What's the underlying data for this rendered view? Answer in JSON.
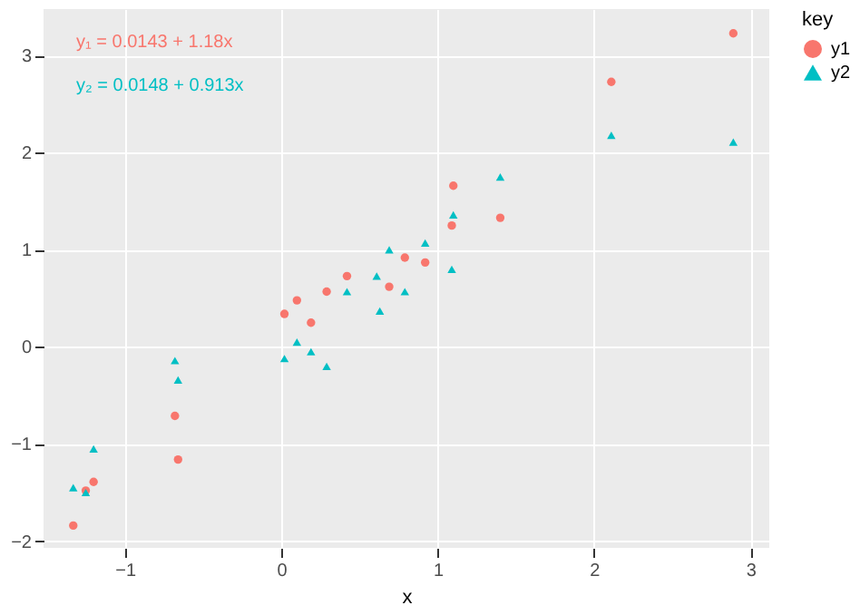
{
  "chart_data": {
    "type": "scatter",
    "xlabel": "x",
    "legend_title": "key",
    "legend": "right",
    "grid": true,
    "xlim": [
      -1.52,
      3.12
    ],
    "ylim": [
      -2.07,
      3.48
    ],
    "xticks": [
      -1,
      0,
      1,
      2,
      3
    ],
    "yticks": [
      -2,
      -1,
      0,
      1,
      2,
      3
    ],
    "annotations": [
      "y₁ = 0.0143 + 1.18x",
      "y₂ = 0.0148 + 0.913x"
    ],
    "series": [
      {
        "name": "y1",
        "color": "#f8766d",
        "marker": "circle",
        "x": [
          -1.33,
          -1.25,
          -1.2,
          -0.68,
          -0.66,
          0.02,
          0.1,
          0.19,
          0.29,
          0.42,
          0.61,
          0.69,
          0.79,
          0.92,
          1.09,
          1.1,
          1.4,
          2.11,
          2.89
        ],
        "values": [
          -1.84,
          -1.48,
          -1.39,
          -0.71,
          -1.16,
          0.34,
          0.48,
          0.25,
          0.57,
          0.73,
          null,
          0.62,
          0.92,
          0.87,
          1.25,
          1.66,
          1.33,
          2.73,
          3.23
        ]
      },
      {
        "name": "y2",
        "color": "#00bfc4",
        "marker": "triangle",
        "x": [
          -1.33,
          -1.25,
          -1.2,
          -0.68,
          -0.66,
          0.02,
          0.1,
          0.19,
          0.29,
          0.42,
          0.61,
          0.63,
          0.69,
          0.79,
          0.92,
          1.09,
          1.1,
          1.4,
          2.11,
          2.89
        ],
        "values": [
          -1.45,
          -1.5,
          -1.05,
          -0.14,
          -0.34,
          -0.12,
          0.05,
          -0.05,
          -0.2,
          0.57,
          0.73,
          0.37,
          1.0,
          0.57,
          1.07,
          0.8,
          1.36,
          1.75,
          2.18,
          2.11
        ]
      }
    ]
  }
}
